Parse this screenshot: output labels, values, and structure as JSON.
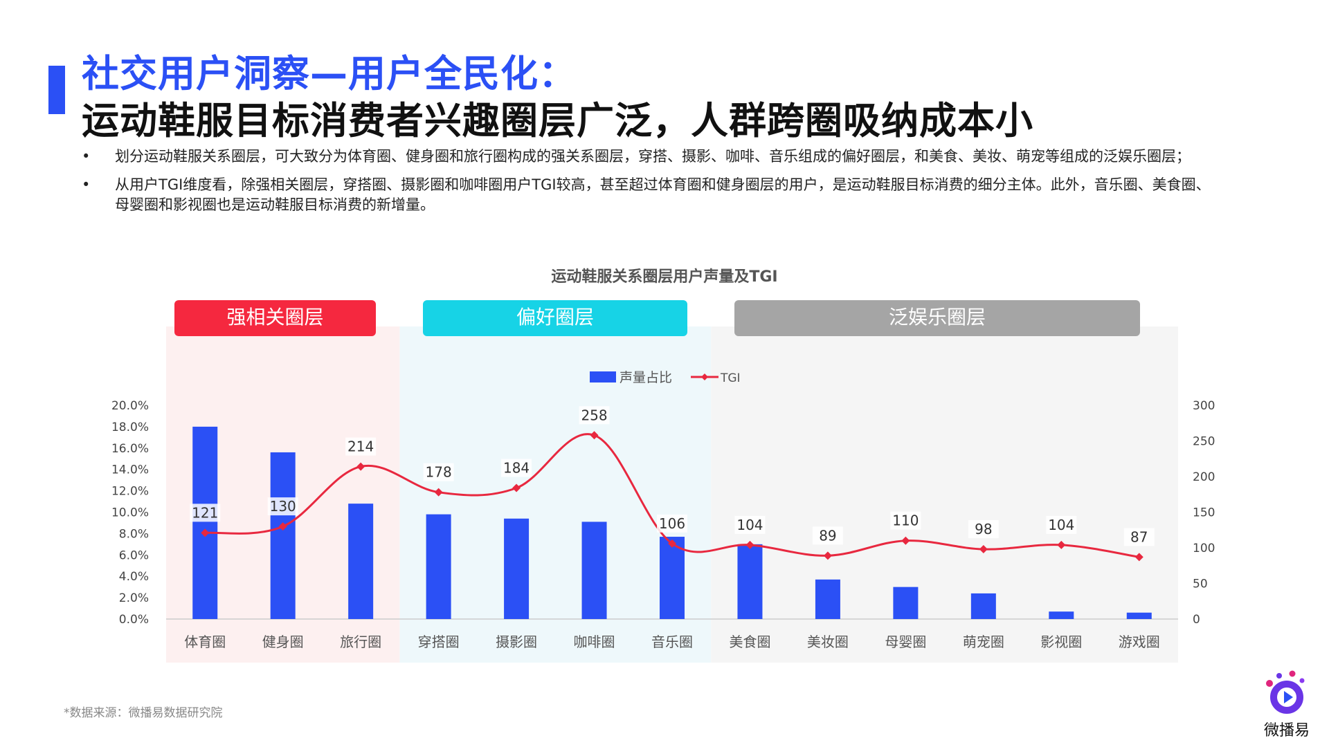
{
  "header": {
    "title_line1": "社交用户洞察—用户全民化：",
    "title_line2": "运动鞋服目标消费者兴趣圈层广泛，人群跨圈吸纳成本小"
  },
  "bullets": [
    "划分运动鞋服关系圈层，可大致分为体育圈、健身圈和旅行圈构成的强关系圈层，穿搭、摄影、咖啡、音乐组成的偏好圈层，和美食、美妆、萌宠等组成的泛娱乐圈层；",
    "从用户TGI维度看，除强相关圈层，穿搭圈、摄影圈和咖啡圈用户TGI较高，甚至超过体育圈和健身圈层的用户，是运动鞋服目标消费的细分主体。此外，音乐圈、美食圈、母婴圈和影视圈也是运动鞋服目标消费的新增量。"
  ],
  "bullet_symbol": "•",
  "groups": [
    {
      "label": "强相关圈层",
      "color": "#f5283f",
      "bg": "#fdf0f0",
      "span": [
        0,
        2
      ]
    },
    {
      "label": "偏好圈层",
      "color": "#17d3e6",
      "bg": "#eef8fb",
      "span": [
        3,
        6
      ]
    },
    {
      "label": "泛娱乐圈层",
      "color": "#a5a5a5",
      "bg": "#f5f5f5",
      "span": [
        7,
        12
      ]
    }
  ],
  "chart_data": {
    "type": "bar+line",
    "title": "运动鞋服关系圈层用户声量及TGI",
    "categories": [
      "体育圈",
      "健身圈",
      "旅行圈",
      "穿搭圈",
      "摄影圈",
      "咖啡圈",
      "音乐圈",
      "美食圈",
      "美妆圈",
      "母婴圈",
      "萌宠圈",
      "影视圈",
      "游戏圈"
    ],
    "series": [
      {
        "name": "声量占比",
        "type": "bar",
        "axis": "left",
        "color": "#2b50f5",
        "values": [
          18.0,
          15.6,
          10.8,
          9.8,
          9.4,
          9.1,
          7.7,
          7.0,
          3.7,
          3.0,
          2.4,
          0.7,
          0.6
        ]
      },
      {
        "name": "TGI",
        "type": "line",
        "axis": "right",
        "color": "#e8283f",
        "values": [
          121,
          130,
          214,
          178,
          184,
          258,
          106,
          104,
          89,
          110,
          98,
          104,
          87
        ]
      }
    ],
    "y_left": {
      "min": 0,
      "max": 20,
      "step": 2,
      "tick_labels": [
        "0.0%",
        "2.0%",
        "4.0%",
        "6.0%",
        "8.0%",
        "10.0%",
        "12.0%",
        "14.0%",
        "16.0%",
        "18.0%",
        "20.0%"
      ]
    },
    "y_right": {
      "min": 0,
      "max": 300,
      "step": 50,
      "tick_labels": [
        "0",
        "50",
        "100",
        "150",
        "200",
        "250",
        "300"
      ]
    },
    "legend_position": "top-center",
    "grid": false
  },
  "footer": {
    "source": "*数据来源：微播易数据研究院",
    "logo_text": "微播易"
  },
  "colors": {
    "brand_blue": "#2b50f5",
    "tgi_red": "#e8283f"
  }
}
